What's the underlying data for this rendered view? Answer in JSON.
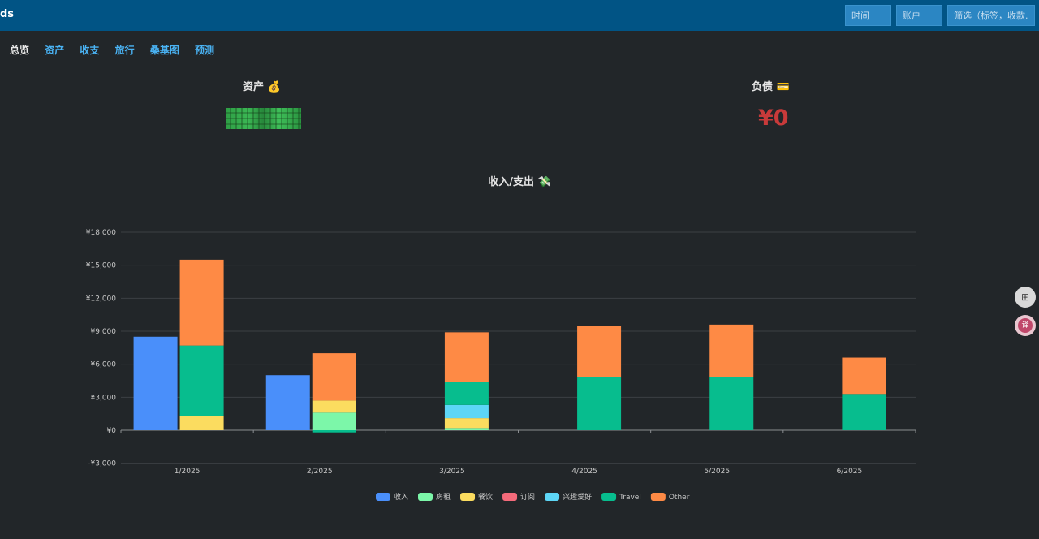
{
  "app": {
    "brand": "ds"
  },
  "topbar": {
    "time_placeholder": "时间",
    "account_placeholder": "账户",
    "filter_placeholder": "筛选（标签，收款..."
  },
  "nav": {
    "items": [
      "总览",
      "资产",
      "收支",
      "旅行",
      "桑基图",
      "预测"
    ],
    "active": 0
  },
  "assets": {
    "title": "资产",
    "icon": "money-bag-icon",
    "value_label": "¥4,4.5",
    "color": "#3cb552"
  },
  "liabilities": {
    "title": "负债",
    "icon": "credit-card-icon",
    "value": "¥0",
    "color": "#c83a3a"
  },
  "chart_title": "收入/支出",
  "chart_title_icon": "money-wings-icon",
  "side_buttons": [
    "apps-icon",
    "translate-icon"
  ],
  "chart_data": {
    "type": "bar",
    "stacked": true,
    "categories": [
      "1/2025",
      "2/2025",
      "3/2025",
      "4/2025",
      "5/2025",
      "6/2025"
    ],
    "ylim": [
      -3000,
      18000
    ],
    "yticks": [
      -3000,
      0,
      3000,
      6000,
      9000,
      12000,
      15000,
      18000
    ],
    "ytick_labels": [
      "-¥3,000",
      "¥0",
      "¥3,000",
      "¥6,000",
      "¥9,000",
      "¥12,000",
      "¥15,000",
      "¥18,000"
    ],
    "grid": true,
    "legend_position": "bottom",
    "income_series": [
      {
        "name": "收入",
        "color": "#4a8ffa",
        "values": [
          8500,
          5000,
          0,
          0,
          0,
          0
        ]
      }
    ],
    "expense_series": [
      {
        "name": "房租",
        "color": "#7cf7a9",
        "values": [
          0,
          1600,
          200,
          0,
          0,
          0
        ],
        "negatives": [
          0,
          -200,
          0,
          0,
          0,
          0
        ]
      },
      {
        "name": "餐饮",
        "color": "#fbdc5f",
        "values": [
          1300,
          1100,
          900,
          0,
          0,
          0
        ]
      },
      {
        "name": "订阅",
        "color": "#f46a7a",
        "values": [
          0,
          0,
          0,
          0,
          0,
          0
        ]
      },
      {
        "name": "兴趣爱好",
        "color": "#5dd6f6",
        "values": [
          0,
          0,
          1200,
          0,
          0,
          0
        ]
      },
      {
        "name": "Travel",
        "color": "#07bd8e",
        "values": [
          6400,
          0,
          2100,
          4800,
          4800,
          3300
        ]
      },
      {
        "name": "Other",
        "color": "#fe8a45",
        "values": [
          7800,
          4300,
          4500,
          4700,
          4800,
          3300
        ]
      }
    ]
  }
}
